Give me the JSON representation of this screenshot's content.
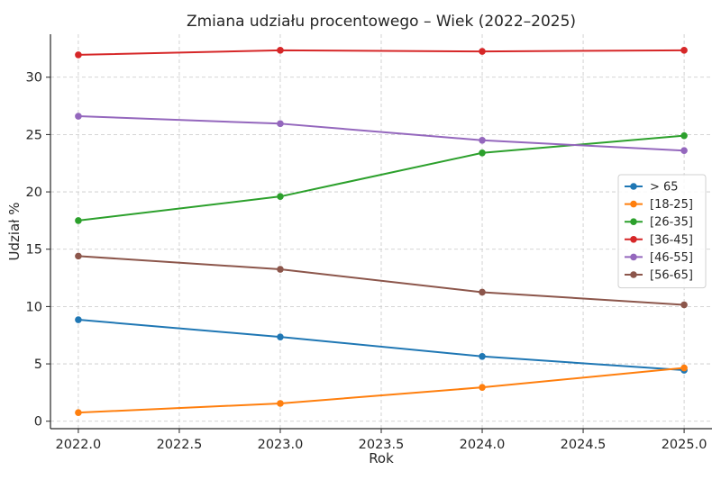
{
  "chart_data": {
    "type": "line",
    "title": "Zmiana udziału procentowego – Wiek (2022–2025)",
    "xlabel": "Rok",
    "ylabel": "Udział %",
    "xlim": [
      1.955,
      5.046
    ],
    "ylim": [
      -0.65,
      33.75
    ],
    "xticks": [
      2022.0,
      2022.5,
      2023.0,
      2023.5,
      2024.0,
      2024.5,
      2025.0
    ],
    "xtick_labels": [
      "2022.0",
      "2022.5",
      "2023.0",
      "2023.5",
      "2024.0",
      "2024.5",
      "2025.0"
    ],
    "yticks": [
      0,
      5,
      10,
      15,
      20,
      25,
      30
    ],
    "ytick_labels": [
      "0",
      "5",
      "10",
      "15",
      "20",
      "25",
      "30"
    ],
    "grid": true,
    "legend_position": "center-right",
    "x": [
      2022,
      2023,
      2024,
      2025
    ],
    "series": [
      {
        "name": "> 65",
        "color": "#1f77b4",
        "values": [
          8.85,
          7.35,
          5.65,
          4.45
        ]
      },
      {
        "name": "[18-25]",
        "color": "#ff7f0e",
        "values": [
          0.75,
          1.55,
          2.95,
          4.65
        ]
      },
      {
        "name": "[26-35]",
        "color": "#2ca02c",
        "values": [
          17.5,
          19.6,
          23.4,
          24.9
        ]
      },
      {
        "name": "[36-45]",
        "color": "#d62728",
        "values": [
          31.95,
          32.35,
          32.25,
          32.35
        ]
      },
      {
        "name": "[46-55]",
        "color": "#9467bd",
        "values": [
          26.6,
          25.95,
          24.5,
          23.6
        ]
      },
      {
        "name": "[56-65]",
        "color": "#8c564b",
        "values": [
          14.4,
          13.25,
          11.25,
          10.15
        ]
      }
    ]
  }
}
